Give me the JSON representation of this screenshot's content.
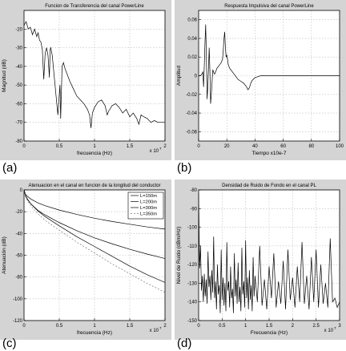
{
  "panel_labels": [
    "(a)",
    "(b)",
    "(c)",
    "(d)"
  ],
  "colors": {
    "panel_bg": "#d4d4d4",
    "axes_bg": "#ffffff",
    "grid": "#bbbbbb",
    "line": "#000000",
    "frame": "#000000"
  },
  "chart_data": [
    {
      "type": "line",
      "title": "Funcion de Transferencia del canal PowerLine",
      "xlabel": "frecuencia (Hz)",
      "ylabel": "Magnitud (dB)",
      "xlim": [
        0,
        2
      ],
      "ylim": [
        -80,
        -10
      ],
      "x_exponent": "x 10",
      "x_exponent_power": "7",
      "xticks": [
        0,
        0.5,
        1,
        1.5,
        2
      ],
      "xtick_labels": [
        "0",
        "0.5",
        "1",
        "1.5",
        "2"
      ],
      "yticks": [
        -80,
        -70,
        -60,
        -50,
        -40,
        -30,
        -20
      ],
      "ytick_labels": [
        "-80",
        "-70",
        "-60",
        "-50",
        "-40",
        "-30",
        "-20"
      ],
      "grid": true,
      "series": [
        {
          "x": [
            0,
            0.03,
            0.06,
            0.09,
            0.12,
            0.15,
            0.18,
            0.2,
            0.22,
            0.24,
            0.26,
            0.27,
            0.28,
            0.3,
            0.32,
            0.34,
            0.36,
            0.37,
            0.38,
            0.4,
            0.42,
            0.44,
            0.46,
            0.48,
            0.5,
            0.51,
            0.52,
            0.54,
            0.56,
            0.58,
            0.6,
            0.65,
            0.7,
            0.75,
            0.8,
            0.85,
            0.9,
            0.93,
            0.95,
            0.97,
            1.0,
            1.05,
            1.1,
            1.15,
            1.18,
            1.2,
            1.25,
            1.3,
            1.35,
            1.4,
            1.45,
            1.5,
            1.55,
            1.6,
            1.63,
            1.66,
            1.7,
            1.75,
            1.8,
            1.85,
            1.9,
            1.95,
            2.0
          ],
          "y": [
            -18,
            -16,
            -20,
            -19,
            -23,
            -20,
            -24,
            -22,
            -26,
            -27,
            -31,
            -39,
            -47,
            -33,
            -30,
            -34,
            -46,
            -31,
            -30,
            -34,
            -42,
            -50,
            -58,
            -66,
            -55,
            -50,
            -68,
            -40,
            -38,
            -41,
            -43,
            -48,
            -52,
            -56,
            -58,
            -60,
            -63,
            -66,
            -73,
            -65,
            -62,
            -59,
            -58,
            -61,
            -66,
            -64,
            -61,
            -60,
            -62,
            -65,
            -63,
            -67,
            -65,
            -68,
            -71,
            -66,
            -67,
            -68,
            -70,
            -69,
            -70,
            -70,
            -70
          ]
        }
      ]
    },
    {
      "type": "line",
      "title": "Respuesta Impulsiva del canal PowerLine",
      "xlabel": "Tiempo x10e-7",
      "ylabel": "Amplitud",
      "xlim": [
        0,
        100
      ],
      "ylim": [
        -0.07,
        0.07
      ],
      "xticks": [
        0,
        20,
        40,
        60,
        80,
        100
      ],
      "xtick_labels": [
        "0",
        "20",
        "40",
        "60",
        "80",
        "100"
      ],
      "yticks": [
        -0.06,
        -0.04,
        -0.02,
        0,
        0.02,
        0.04,
        0.06
      ],
      "ytick_labels": [
        "-0.06",
        "-0.04",
        "-0.02",
        "0",
        "0.02",
        "0.04",
        "0.06"
      ],
      "grid": true,
      "series": [
        {
          "x": [
            0,
            1,
            2,
            3,
            3.5,
            4,
            4.5,
            5,
            5.5,
            6,
            6.5,
            7,
            7.5,
            8,
            8.5,
            9,
            9.5,
            10,
            10.5,
            11,
            11.5,
            12,
            13,
            14,
            15,
            16,
            17,
            17.5,
            18,
            18.5,
            19,
            19.5,
            20,
            20.5,
            21,
            22,
            23,
            24,
            25,
            26,
            27,
            28,
            30,
            32,
            34,
            35,
            36,
            37,
            38,
            40,
            42,
            44,
            46,
            48,
            50,
            60,
            70,
            80,
            90,
            100
          ],
          "y": [
            0,
            0,
            0.001,
            0.004,
            -0.012,
            0.01,
            0.035,
            0.055,
            0.02,
            -0.025,
            -0.012,
            0.008,
            0.03,
            0.005,
            -0.03,
            -0.02,
            -0.008,
            0.006,
            0.005,
            0.002,
            0.002,
            0.004,
            0.008,
            0.01,
            0.012,
            0.014,
            0.018,
            0.028,
            0.04,
            0.047,
            0.03,
            0.02,
            0.022,
            0.018,
            0.012,
            0.008,
            0.006,
            0.004,
            0.002,
            0,
            -0.002,
            -0.004,
            -0.006,
            -0.008,
            -0.012,
            -0.015,
            -0.013,
            -0.008,
            -0.005,
            -0.002,
            -0.001,
            0,
            0,
            0,
            0,
            0,
            0,
            0,
            0,
            0
          ]
        }
      ]
    },
    {
      "type": "line",
      "title": "Atenuacion en el canal en funcion de la longitud del conductor",
      "xlabel": "frecuencia (Hz)",
      "ylabel": "Atenuación (dB)",
      "xlim": [
        0,
        2
      ],
      "ylim": [
        -120,
        0
      ],
      "x_exponent": "x 10",
      "x_exponent_power": "7",
      "xticks": [
        0,
        0.5,
        1,
        1.5,
        2
      ],
      "xtick_labels": [
        "0",
        "0.5",
        "1",
        "1.5",
        "2"
      ],
      "yticks": [
        -120,
        -100,
        -80,
        -60,
        -40,
        -20,
        0
      ],
      "ytick_labels": [
        "-120",
        "-100",
        "-80",
        "-60",
        "-40",
        "-20",
        "0"
      ],
      "grid": true,
      "legend_placement": "top-right",
      "series": [
        {
          "name": "L=150m",
          "dash": "",
          "x": [
            0,
            0.02,
            0.05,
            0.1,
            0.2,
            0.3,
            0.5,
            0.75,
            1.0,
            1.25,
            1.5,
            1.75,
            2.0
          ],
          "y": [
            0,
            -4,
            -6,
            -8.5,
            -12,
            -14.5,
            -18.5,
            -22.5,
            -26,
            -29,
            -31.5,
            -34,
            -36
          ]
        },
        {
          "name": "L=200m",
          "dash": "",
          "x": [
            0,
            0.02,
            0.05,
            0.1,
            0.2,
            0.3,
            0.5,
            0.75,
            1.0,
            1.25,
            1.5,
            1.75,
            2.0
          ],
          "y": [
            0,
            -5,
            -9,
            -13,
            -19,
            -23,
            -30,
            -37.5,
            -44,
            -49.5,
            -54.5,
            -59,
            -63
          ]
        },
        {
          "name": "L=300m",
          "dash": "",
          "x": [
            0,
            0.02,
            0.05,
            0.1,
            0.2,
            0.3,
            0.5,
            0.75,
            1.0,
            1.25,
            1.5,
            1.75,
            2.0
          ],
          "y": [
            0,
            -5,
            -8.5,
            -13,
            -19.5,
            -24.5,
            -33,
            -43,
            -52,
            -61,
            -70,
            -78,
            -85
          ]
        },
        {
          "name": "L=350m",
          "dash": "2,2",
          "x": [
            0,
            0.02,
            0.05,
            0.1,
            0.2,
            0.3,
            0.5,
            0.75,
            1.0,
            1.25,
            1.5,
            1.75,
            2.0
          ],
          "y": [
            0,
            -6,
            -10,
            -15,
            -22,
            -28,
            -37,
            -48,
            -58,
            -68,
            -77,
            -86,
            -94
          ]
        }
      ]
    },
    {
      "type": "line",
      "title": "Densidad de Ruido de Fondo en el canal PL",
      "xlabel": "Frecuencia (Hz)",
      "ylabel": "Nivel de Ruido (dBm/Hz)",
      "xlim": [
        0,
        3
      ],
      "ylim": [
        -150,
        -80
      ],
      "x_exponent": "x 10",
      "x_exponent_power": "7",
      "xticks": [
        0,
        0.5,
        1,
        1.5,
        2,
        2.5,
        3
      ],
      "xtick_labels": [
        "0",
        "0.5",
        "1",
        "1.5",
        "2",
        "2.5",
        "3"
      ],
      "yticks": [
        -150,
        -140,
        -130,
        -120,
        -110,
        -100,
        -90,
        -80
      ],
      "ytick_labels": [
        "-150",
        "-140",
        "-130",
        "-120",
        "-110",
        "-100",
        "-90",
        "-80"
      ],
      "grid": true,
      "series": [
        {
          "x": [
            0,
            0.02,
            0.04,
            0.06,
            0.08,
            0.1,
            0.12,
            0.14,
            0.16,
            0.18,
            0.2,
            0.22,
            0.24,
            0.26,
            0.28,
            0.3,
            0.32,
            0.34,
            0.36,
            0.38,
            0.4,
            0.42,
            0.44,
            0.46,
            0.48,
            0.5,
            0.52,
            0.54,
            0.56,
            0.58,
            0.6,
            0.62,
            0.64,
            0.66,
            0.68,
            0.7,
            0.72,
            0.74,
            0.76,
            0.78,
            0.8,
            0.82,
            0.84,
            0.86,
            0.88,
            0.9,
            0.92,
            0.94,
            0.96,
            0.98,
            1.0,
            1.02,
            1.04,
            1.06,
            1.08,
            1.1,
            1.12,
            1.14,
            1.16,
            1.18,
            1.2,
            1.25,
            1.3,
            1.35,
            1.4,
            1.45,
            1.5,
            1.55,
            1.6,
            1.65,
            1.7,
            1.75,
            1.8,
            1.85,
            1.9,
            1.95,
            2.0,
            2.05,
            2.1,
            2.15,
            2.2,
            2.25,
            2.3,
            2.35,
            2.4,
            2.45,
            2.5,
            2.55,
            2.6,
            2.65,
            2.7,
            2.75,
            2.8,
            2.85,
            2.9,
            2.95,
            3.0
          ],
          "y": [
            -82,
            -122,
            -110,
            -134,
            -126,
            -140,
            -125,
            -137,
            -128,
            -141,
            -113,
            -132,
            -126,
            -139,
            -123,
            -135,
            -105,
            -138,
            -129,
            -144,
            -120,
            -136,
            -131,
            -146,
            -112,
            -139,
            -127,
            -142,
            -130,
            -145,
            -108,
            -134,
            -129,
            -143,
            -121,
            -138,
            -133,
            -146,
            -114,
            -137,
            -128,
            -141,
            -119,
            -140,
            -132,
            -145,
            -111,
            -136,
            -129,
            -143,
            -107,
            -138,
            -127,
            -144,
            -123,
            -139,
            -131,
            -145,
            -116,
            -137,
            -126,
            -140,
            -110,
            -142,
            -128,
            -144,
            -121,
            -138,
            -114,
            -143,
            -129,
            -141,
            -118,
            -144,
            -112,
            -139,
            -127,
            -143,
            -121,
            -140,
            -108,
            -141,
            -126,
            -144,
            -116,
            -140,
            -112,
            -143,
            -120,
            -141,
            -130,
            -143,
            -106,
            -140,
            -138,
            -143,
            -140
          ]
        }
      ]
    }
  ]
}
